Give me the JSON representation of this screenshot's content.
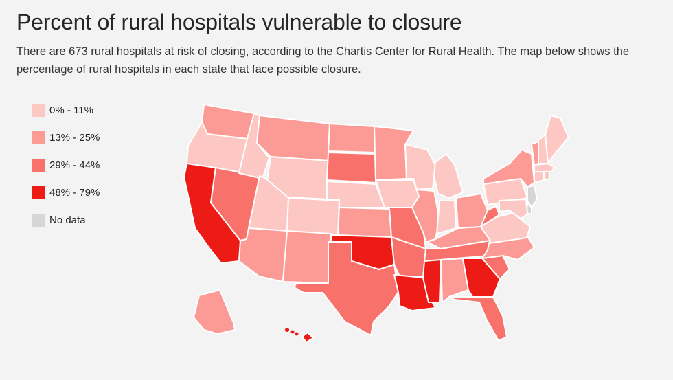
{
  "title": "Percent of rural hospitals vulnerable to closure",
  "subtitle": "There are 673 rural hospitals at risk of closing, according to the Chartis Center for Rural Health. The map below shows the percentage of rural hospitals in each state that face possible closure.",
  "legend": [
    {
      "label": "0% - 11%",
      "color": "#fdc7c3",
      "bin": 0
    },
    {
      "label": "13% - 25%",
      "color": "#fc9b95",
      "bin": 1
    },
    {
      "label": "29% - 44%",
      "color": "#f8716b",
      "bin": 2
    },
    {
      "label": "48% - 79%",
      "color": "#ec1b16",
      "bin": 3
    },
    {
      "label": "No data",
      "color": "#d6d6d6",
      "bin": 4
    }
  ],
  "map": {
    "states": [
      {
        "code": "WA",
        "bin": 1
      },
      {
        "code": "OR",
        "bin": 0
      },
      {
        "code": "CA",
        "bin": 3
      },
      {
        "code": "NV",
        "bin": 2
      },
      {
        "code": "ID",
        "bin": 0
      },
      {
        "code": "MT",
        "bin": 1
      },
      {
        "code": "WY",
        "bin": 0
      },
      {
        "code": "UT",
        "bin": 0
      },
      {
        "code": "AZ",
        "bin": 1
      },
      {
        "code": "CO",
        "bin": 0
      },
      {
        "code": "NM",
        "bin": 1
      },
      {
        "code": "ND",
        "bin": 1
      },
      {
        "code": "SD",
        "bin": 2
      },
      {
        "code": "NE",
        "bin": 0
      },
      {
        "code": "KS",
        "bin": 1
      },
      {
        "code": "OK",
        "bin": 3
      },
      {
        "code": "TX",
        "bin": 2
      },
      {
        "code": "MN",
        "bin": 1
      },
      {
        "code": "IA",
        "bin": 0
      },
      {
        "code": "MO",
        "bin": 2
      },
      {
        "code": "AR",
        "bin": 2
      },
      {
        "code": "LA",
        "bin": 3
      },
      {
        "code": "WI",
        "bin": 0
      },
      {
        "code": "IL",
        "bin": 1
      },
      {
        "code": "MI",
        "bin": 0
      },
      {
        "code": "IN",
        "bin": 0
      },
      {
        "code": "OH",
        "bin": 1
      },
      {
        "code": "KY",
        "bin": 1
      },
      {
        "code": "TN",
        "bin": 2
      },
      {
        "code": "MS",
        "bin": 3
      },
      {
        "code": "AL",
        "bin": 1
      },
      {
        "code": "GA",
        "bin": 3
      },
      {
        "code": "FL",
        "bin": 2
      },
      {
        "code": "SC",
        "bin": 2
      },
      {
        "code": "NC",
        "bin": 1
      },
      {
        "code": "VA",
        "bin": 0
      },
      {
        "code": "WV",
        "bin": 2
      },
      {
        "code": "PA",
        "bin": 0
      },
      {
        "code": "NY",
        "bin": 1
      },
      {
        "code": "VT",
        "bin": 1
      },
      {
        "code": "NH",
        "bin": 0
      },
      {
        "code": "ME",
        "bin": 0
      },
      {
        "code": "MA",
        "bin": 0
      },
      {
        "code": "CT",
        "bin": 0
      },
      {
        "code": "RI",
        "bin": 0
      },
      {
        "code": "NJ",
        "bin": 4
      },
      {
        "code": "DE",
        "bin": 4
      },
      {
        "code": "MD",
        "bin": 0
      },
      {
        "code": "AK",
        "bin": 1
      },
      {
        "code": "HI",
        "bin": 3
      }
    ]
  }
}
